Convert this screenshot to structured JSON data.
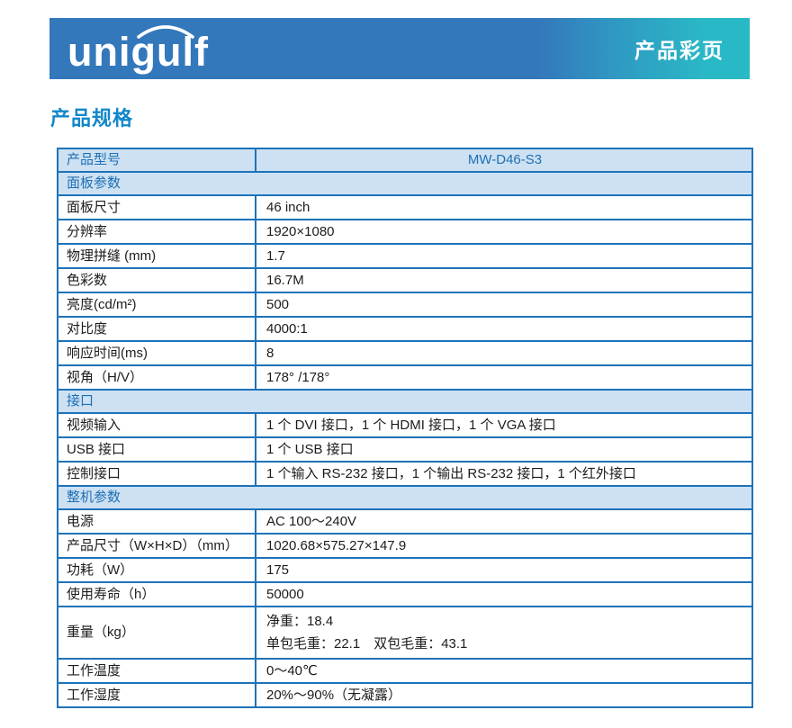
{
  "banner": {
    "logo": "unigulf",
    "tag": "产品彩页"
  },
  "title": "产品规格",
  "colors": {
    "banner_blue": "#3478bc",
    "banner_teal": "#29b9c6",
    "title_blue": "#1287ca",
    "table_border": "#1d73b9",
    "section_bg": "#cde1f3",
    "section_text": "#1e6fb2"
  },
  "table": {
    "header": {
      "label": "产品型号",
      "value": "MW-D46-S3"
    },
    "sections": [
      {
        "title": "面板参数",
        "rows": [
          {
            "label": "面板尺寸",
            "value": "46 inch"
          },
          {
            "label": "分辨率",
            "value": "1920×1080"
          },
          {
            "label": "物理拼缝 (mm)",
            "value": "1.7"
          },
          {
            "label": "色彩数",
            "value": "16.7M"
          },
          {
            "label": "亮度(cd/m²)",
            "value": "500"
          },
          {
            "label": "对比度",
            "value": "4000:1"
          },
          {
            "label": "响应时间(ms)",
            "value": "8"
          },
          {
            "label": "视角（H/V）",
            "value": "178° /178°"
          }
        ]
      },
      {
        "title": "接口",
        "rows": [
          {
            "label": "视频输入",
            "value": "1 个 DVI 接口，1 个 HDMI 接口，1 个 VGA 接口"
          },
          {
            "label": "USB 接口",
            "value": "1 个 USB 接口"
          },
          {
            "label": "控制接口",
            "value": "1 个输入 RS-232 接口，1 个输出 RS-232 接口，1 个红外接口"
          }
        ]
      },
      {
        "title": "整机参数",
        "rows": [
          {
            "label": "电源",
            "value": "AC 100～240V"
          },
          {
            "label": "产品尺寸（W×H×D）（mm）",
            "value": "1020.68×575.27×147.9"
          },
          {
            "label": "功耗（W）",
            "value": "175"
          },
          {
            "label": "使用寿命（h）",
            "value": "50000"
          },
          {
            "label": "重量（kg）",
            "value": [
              "净重：18.4",
              "单包毛重：22.1　双包毛重：43.1"
            ]
          },
          {
            "label": "工作温度",
            "value": "0～40℃"
          },
          {
            "label": "工作湿度",
            "value": "20%～90%（无凝露）"
          }
        ]
      }
    ]
  }
}
